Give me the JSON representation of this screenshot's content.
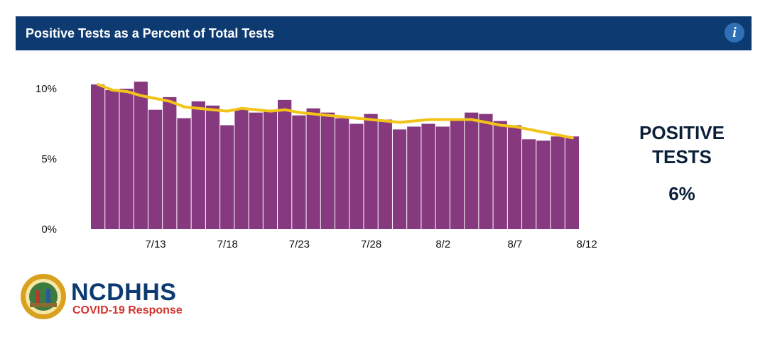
{
  "header": {
    "title": "Positive Tests as a Percent of Total Tests",
    "info_icon": "info-icon",
    "info_label": "i"
  },
  "kpi": {
    "label": "POSITIVE TESTS",
    "value": "6%"
  },
  "logo": {
    "brand": "NCDHHS",
    "subtitle": "COVID-19 Response"
  },
  "colors": {
    "header_bg": "#0d3a70",
    "bar": "#86397e",
    "line": "#f2c418"
  },
  "chart_data": {
    "type": "bar",
    "title": "Positive Tests as a Percent of Total Tests",
    "xlabel": "",
    "ylabel": "",
    "ylim": [
      0,
      10
    ],
    "y_ticks": [
      "0%",
      "5%",
      "10%"
    ],
    "y_tick_values": [
      0,
      5,
      10
    ],
    "x_tick_labels": [
      "7/13",
      "7/18",
      "7/23",
      "7/28",
      "8/2",
      "8/7",
      "8/12"
    ],
    "categories": [
      "7/9",
      "7/10",
      "7/11",
      "7/12",
      "7/13",
      "7/14",
      "7/15",
      "7/16",
      "7/17",
      "7/18",
      "7/19",
      "7/20",
      "7/21",
      "7/22",
      "7/23",
      "7/24",
      "7/25",
      "7/26",
      "7/27",
      "7/28",
      "7/29",
      "7/30",
      "7/31",
      "8/1",
      "8/2",
      "8/3",
      "8/4",
      "8/5",
      "8/6",
      "8/7",
      "8/8",
      "8/9",
      "8/10",
      "8/11"
    ],
    "series": [
      {
        "type": "bar",
        "values": [
          10.3,
          9.9,
          10.0,
          10.5,
          8.5,
          9.4,
          7.9,
          9.1,
          8.8,
          7.4,
          8.6,
          8.3,
          8.5,
          9.2,
          8.1,
          8.6,
          8.3,
          7.9,
          7.5,
          8.2,
          7.8,
          7.1,
          7.3,
          7.5,
          7.3,
          7.8,
          8.3,
          8.2,
          7.7,
          7.4,
          6.4,
          6.3,
          6.6,
          6.6
        ]
      },
      {
        "type": "line",
        "values": [
          10.3,
          9.9,
          9.8,
          9.5,
          9.3,
          9.1,
          8.7,
          8.6,
          8.5,
          8.4,
          8.6,
          8.5,
          8.4,
          8.5,
          8.3,
          8.2,
          8.1,
          8.0,
          7.9,
          7.8,
          7.7,
          7.6,
          7.7,
          7.8,
          7.8,
          7.8,
          7.8,
          7.6,
          7.4,
          7.3,
          7.1,
          6.9,
          6.7,
          6.5
        ]
      }
    ],
    "grid": false,
    "legend": "none"
  }
}
